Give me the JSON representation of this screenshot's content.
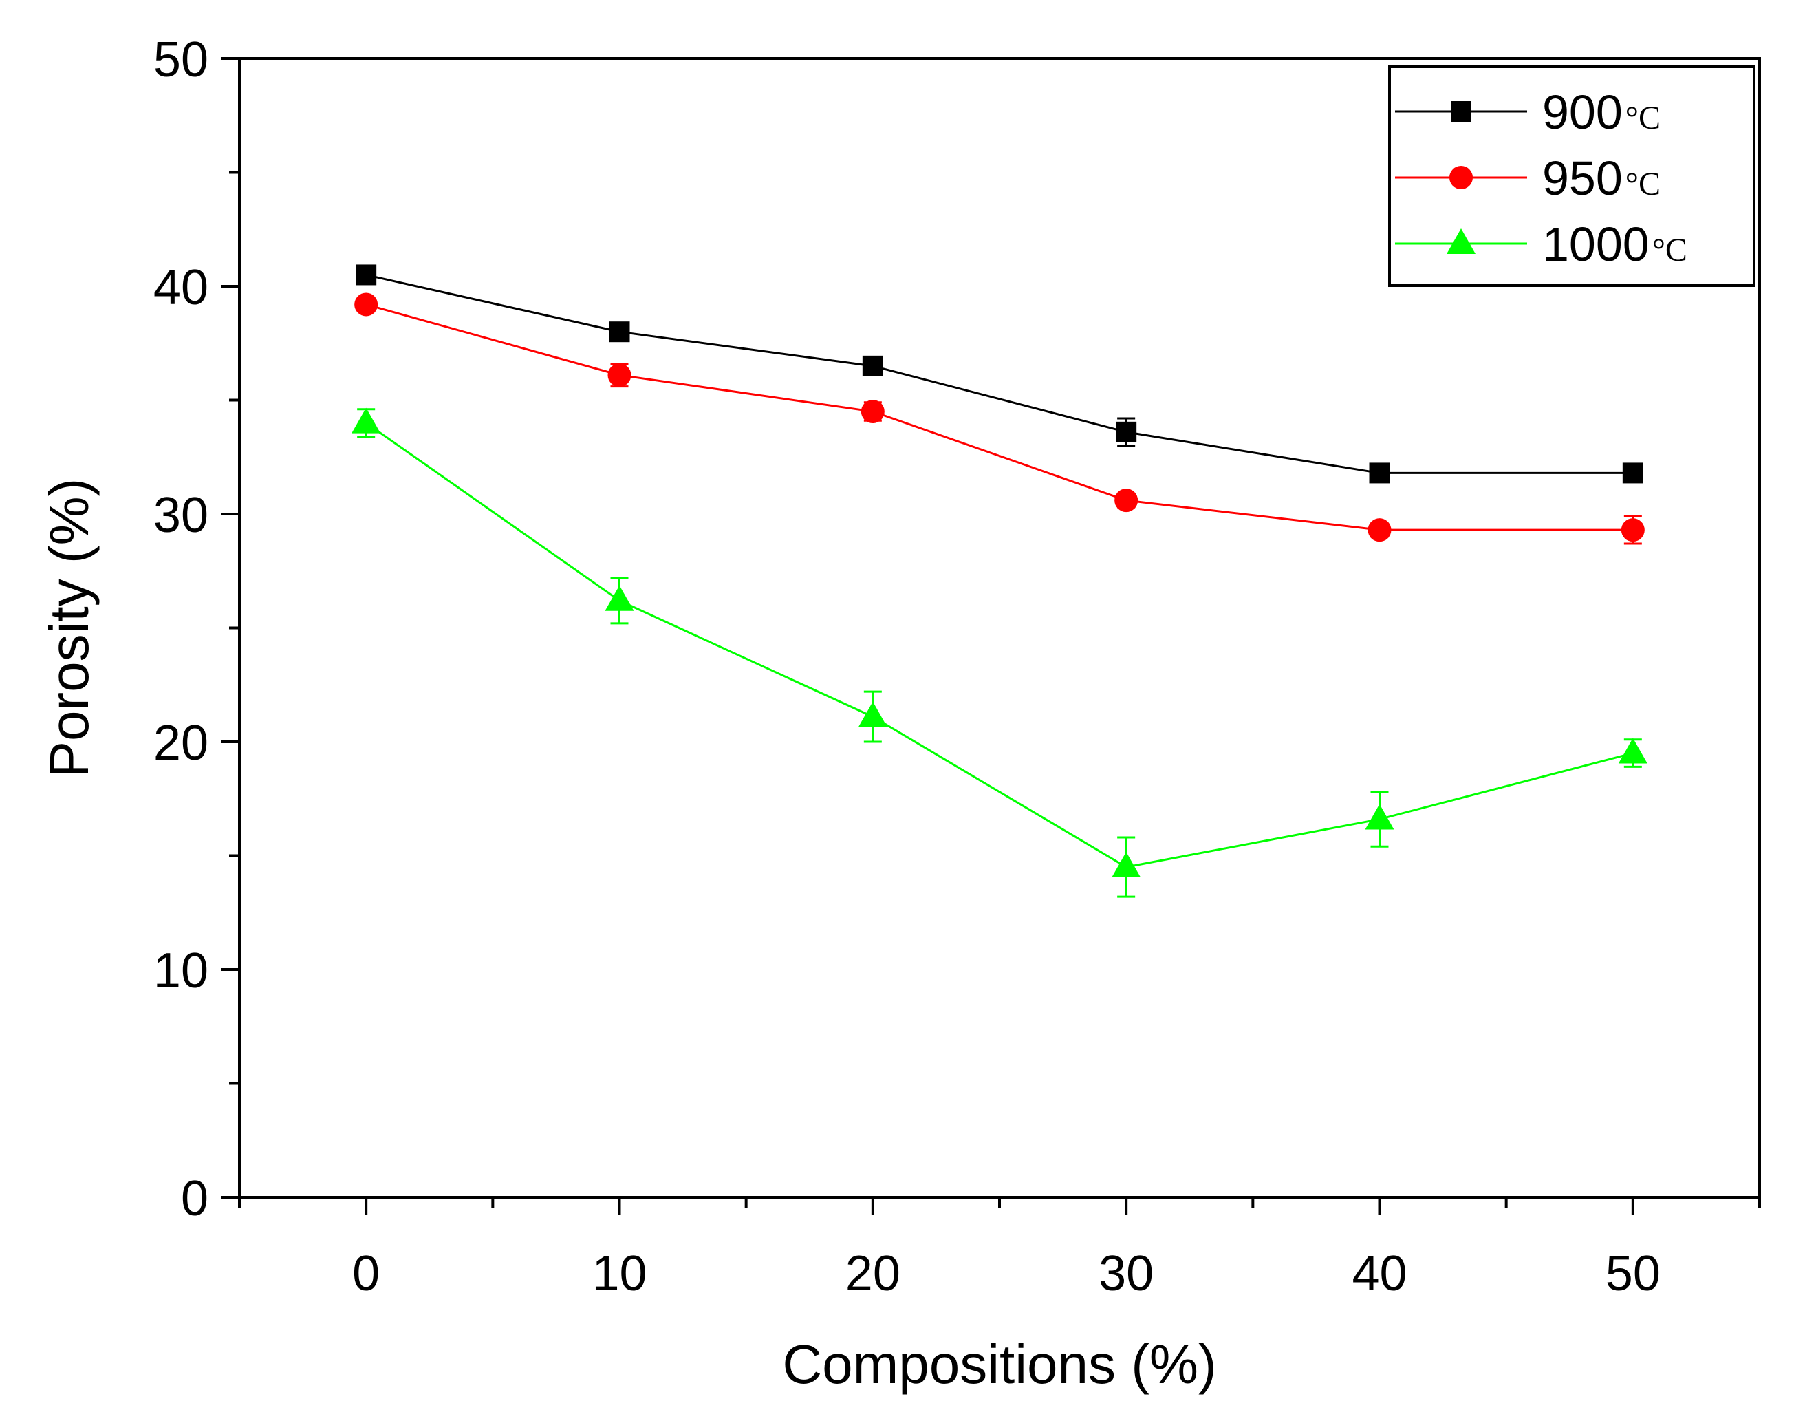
{
  "chart_data": {
    "type": "line",
    "xlabel": "Compositions (%)",
    "ylabel": "Porosity (%)",
    "xlim": [
      -5,
      55
    ],
    "ylim": [
      0,
      50
    ],
    "x_ticks": [
      0,
      10,
      20,
      30,
      40,
      50
    ],
    "y_ticks": [
      0,
      10,
      20,
      30,
      40,
      50
    ],
    "grid": false,
    "legend_position": "top-right",
    "x": [
      0,
      10,
      20,
      30,
      40,
      50
    ],
    "series": [
      {
        "name": "900",
        "unit": "°C",
        "color": "#000000",
        "marker": "square",
        "values": [
          40.5,
          38.0,
          36.5,
          33.6,
          31.8,
          31.8
        ],
        "errors": [
          0.3,
          0.3,
          0.3,
          0.6,
          0.3,
          0.3
        ]
      },
      {
        "name": "950",
        "unit": "°C",
        "color": "#ff0000",
        "marker": "circle",
        "values": [
          39.2,
          36.1,
          34.5,
          30.6,
          29.3,
          29.3
        ],
        "errors": [
          0.3,
          0.5,
          0.4,
          0.3,
          0.3,
          0.6
        ]
      },
      {
        "name": "1000",
        "unit": "°C",
        "color": "#00ff00",
        "marker": "triangle",
        "values": [
          34.0,
          26.2,
          21.1,
          14.5,
          16.6,
          19.5
        ],
        "errors": [
          0.6,
          1.0,
          1.1,
          1.3,
          1.2,
          0.6
        ]
      }
    ]
  }
}
